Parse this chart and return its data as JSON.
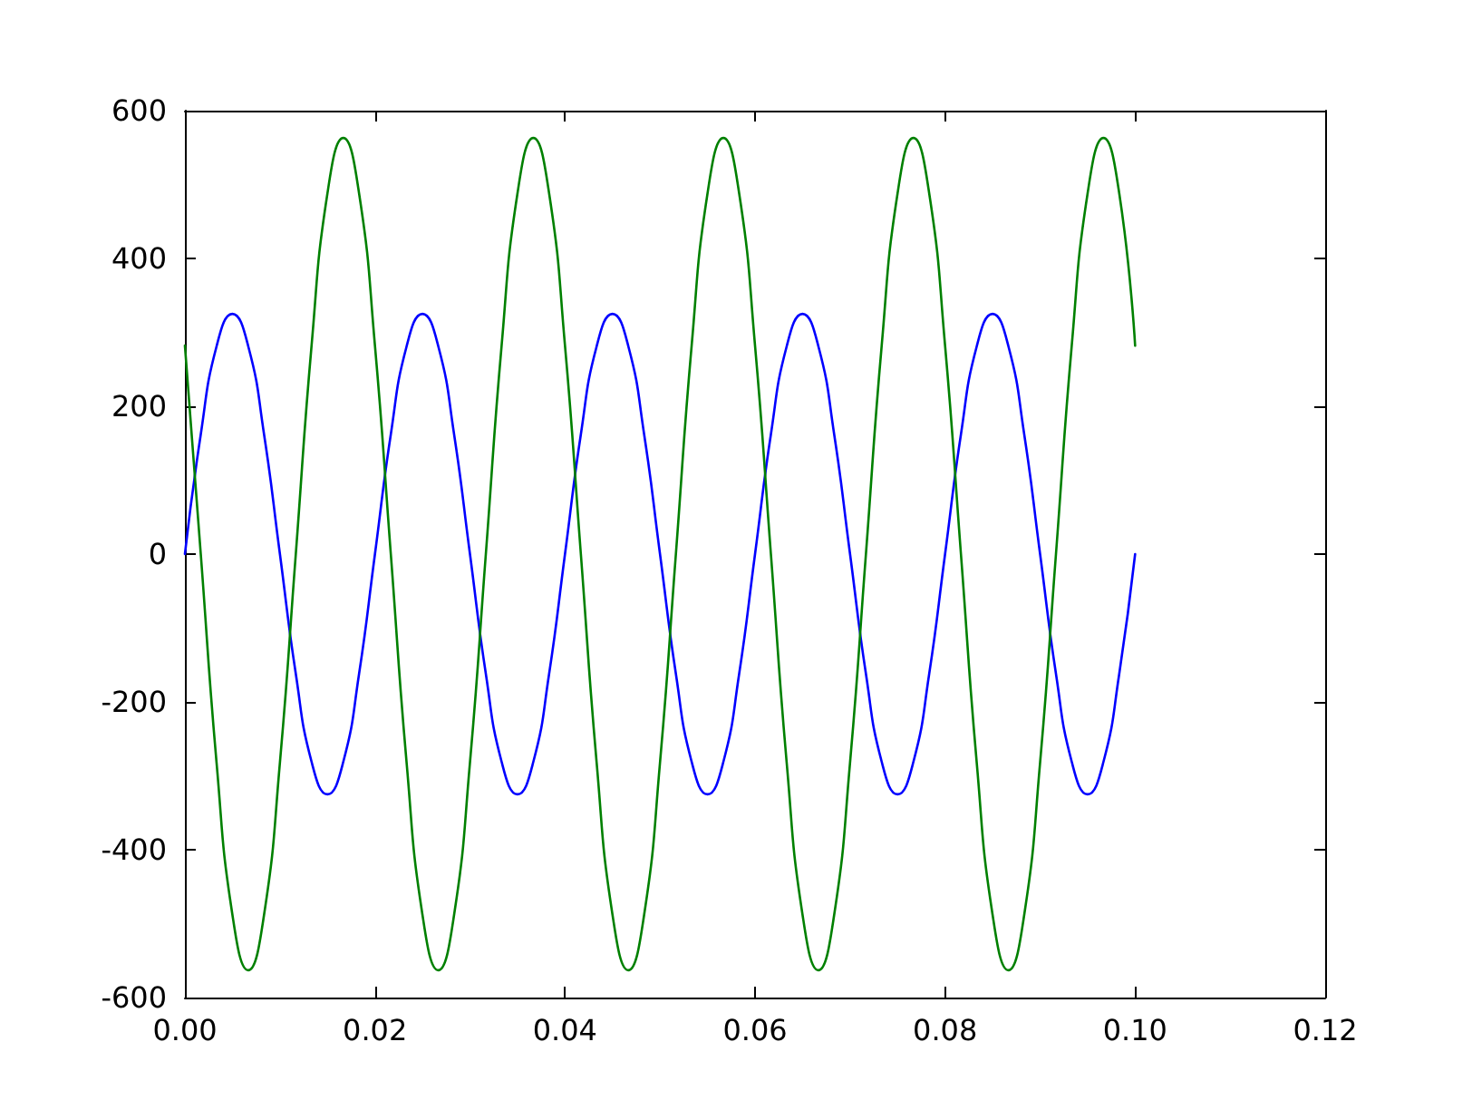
{
  "chart_data": {
    "type": "line",
    "line_style": "solid",
    "marker": "none",
    "x": [
      0,
      0.00167,
      0.00333,
      0.005,
      0.00667,
      0.00833,
      0.01,
      0.01167,
      0.01333,
      0.015,
      0.01667,
      0.01833,
      0.02,
      0.02167,
      0.02333,
      0.025,
      0.02667,
      0.02833,
      0.03,
      0.03167,
      0.03333,
      0.035,
      0.03667,
      0.03833,
      0.04,
      0.04167,
      0.04333,
      0.045,
      0.04667,
      0.04833,
      0.05,
      0.05167,
      0.05333,
      0.055,
      0.05667,
      0.05833,
      0.06,
      0.06167,
      0.06333,
      0.065,
      0.06667,
      0.06833,
      0.07,
      0.07167,
      0.07333,
      0.075,
      0.07667,
      0.07833,
      0.08,
      0.08167,
      0.08333,
      0.085,
      0.08667,
      0.08833,
      0.09,
      0.09167,
      0.09333,
      0.095,
      0.09667,
      0.09833,
      0.1
    ],
    "series": [
      {
        "color": "#0000ff",
        "values": [
          0,
          162,
          281,
          325,
          281,
          162,
          0,
          -162,
          -281,
          -325,
          -281,
          -162,
          0,
          162,
          281,
          325,
          281,
          162,
          0,
          -162,
          -281,
          -325,
          -281,
          -162,
          0,
          162,
          281,
          325,
          281,
          162,
          0,
          -162,
          -281,
          -325,
          -281,
          -162,
          0,
          162,
          281,
          325,
          281,
          162,
          0,
          -162,
          -281,
          -325,
          -281,
          -162,
          0,
          162,
          281,
          325,
          281,
          162,
          0,
          -162,
          -281,
          -325,
          -281,
          -162,
          0
        ]
      },
      {
        "color": "#008000",
        "values": [
          282,
          0,
          -282,
          -488,
          -563,
          -488,
          -282,
          0,
          282,
          488,
          563,
          488,
          282,
          0,
          -282,
          -488,
          -563,
          -488,
          -282,
          0,
          282,
          488,
          563,
          488,
          282,
          0,
          -282,
          -488,
          -563,
          -488,
          -282,
          0,
          282,
          488,
          563,
          488,
          282,
          0,
          -282,
          -488,
          -563,
          -488,
          -282,
          0,
          282,
          488,
          563,
          488,
          282,
          0,
          -282,
          -488,
          -563,
          -488,
          -282,
          0,
          282,
          488,
          563,
          488,
          282
        ]
      }
    ],
    "xlim": [
      0,
      0.12
    ],
    "xticks": [
      {
        "value": 0,
        "label": "0.00"
      },
      {
        "value": 0.02,
        "label": "0.02"
      },
      {
        "value": 0.04,
        "label": "0.04"
      },
      {
        "value": 0.06,
        "label": "0.06"
      },
      {
        "value": 0.08,
        "label": "0.08"
      },
      {
        "value": 0.1,
        "label": "0.10"
      },
      {
        "value": 0.12,
        "label": "0.12"
      }
    ],
    "ylim": [
      -600,
      600
    ],
    "yticks": [
      -600,
      -400,
      -200,
      0,
      200,
      400,
      600
    ]
  }
}
